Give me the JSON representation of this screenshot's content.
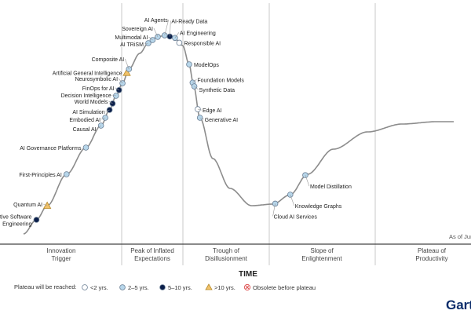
{
  "chart_data": {
    "type": "scatter",
    "title": "",
    "xlabel": "TIME",
    "as_of": "As of Jun",
    "phases": [
      {
        "lines": [
          "Innovation",
          "Trigger"
        ]
      },
      {
        "lines": [
          "Peak of Inflated",
          "Expectations"
        ]
      },
      {
        "lines": [
          "Trough of",
          "Disillusionment"
        ]
      },
      {
        "lines": [
          "Slope of",
          "Enlightenment"
        ]
      },
      {
        "lines": [
          "Plateau of",
          "Productivity"
        ]
      }
    ],
    "legend": {
      "title": "Plateau will be reached:",
      "items": [
        {
          "label": "<2 yrs.",
          "marker": "circle",
          "color": "#ffffff"
        },
        {
          "label": "2–5 yrs.",
          "marker": "circle",
          "color": "#b7d6ea"
        },
        {
          "label": "5–10 yrs.",
          "marker": "circle",
          "color": "#0b1f4a"
        },
        {
          "label": ">10 yrs.",
          "marker": "triangle",
          "color": "#f1c26a"
        },
        {
          "label": "Obsolete before plateau",
          "marker": "cross",
          "color": "#e05a5a"
        }
      ]
    },
    "points": [
      {
        "label": "AI-Native Software Engineering",
        "lines": [
          "AI-Native Software",
          "Engineering"
        ],
        "t": 0.03,
        "cat": "5–10 yrs."
      },
      {
        "label": "Quantum AI",
        "t": 0.055,
        "cat": ">10 yrs."
      },
      {
        "label": "First-Principles AI",
        "t": 0.1,
        "cat": "2–5 yrs."
      },
      {
        "label": "AI Governance Platforms",
        "t": 0.145,
        "cat": "2–5 yrs."
      },
      {
        "label": "Causal AI",
        "t": 0.18,
        "cat": "2–5 yrs."
      },
      {
        "label": "Embodied AI",
        "t": 0.19,
        "cat": "2–5 yrs."
      },
      {
        "label": "AI Simulation",
        "t": 0.2,
        "cat": "5–10 yrs."
      },
      {
        "label": "World Models",
        "t": 0.207,
        "cat": "5–10 yrs."
      },
      {
        "label": "Decision Intelligence",
        "t": 0.215,
        "cat": "2–5 yrs."
      },
      {
        "label": "FinOps for AI",
        "t": 0.222,
        "cat": "5–10 yrs."
      },
      {
        "label": "Neurosymbolic AI",
        "t": 0.23,
        "cat": "2–5 yrs."
      },
      {
        "label": "Artificial General Intelligence",
        "t": 0.24,
        "cat": ">10 yrs."
      },
      {
        "label": "Composite AI",
        "t": 0.245,
        "cat": "2–5 yrs."
      },
      {
        "label": "AI TRiSM",
        "t": 0.29,
        "cat": "2–5 yrs."
      },
      {
        "label": "Multimodal AI",
        "t": 0.3,
        "cat": "2–5 yrs."
      },
      {
        "label": "Sovereign AI",
        "t": 0.312,
        "cat": "2–5 yrs."
      },
      {
        "label": "AI Agents",
        "t": 0.328,
        "cat": "2–5 yrs."
      },
      {
        "label": "AI-Ready Data",
        "t": 0.34,
        "cat": "5–10 yrs."
      },
      {
        "label": "AI Engineering",
        "t": 0.352,
        "cat": "2–5 yrs."
      },
      {
        "label": "Responsible AI",
        "t": 0.362,
        "cat": "<2 yrs."
      },
      {
        "label": "ModelOps",
        "t": 0.385,
        "cat": "2–5 yrs."
      },
      {
        "label": "Foundation Models",
        "t": 0.393,
        "cat": "2–5 yrs."
      },
      {
        "label": "Synthetic Data",
        "t": 0.397,
        "cat": "2–5 yrs."
      },
      {
        "label": "Edge AI",
        "t": 0.405,
        "cat": "<2 yrs."
      },
      {
        "label": "Generative AI",
        "t": 0.41,
        "cat": "2–5 yrs."
      },
      {
        "label": "Cloud AI Services",
        "t": 0.585,
        "cat": "2–5 yrs."
      },
      {
        "label": "Knowledge Graphs",
        "t": 0.62,
        "cat": "2–5 yrs."
      },
      {
        "label": "Model Distillation",
        "t": 0.655,
        "cat": "2–5 yrs."
      }
    ]
  },
  "brand": {
    "text": "Gart"
  }
}
